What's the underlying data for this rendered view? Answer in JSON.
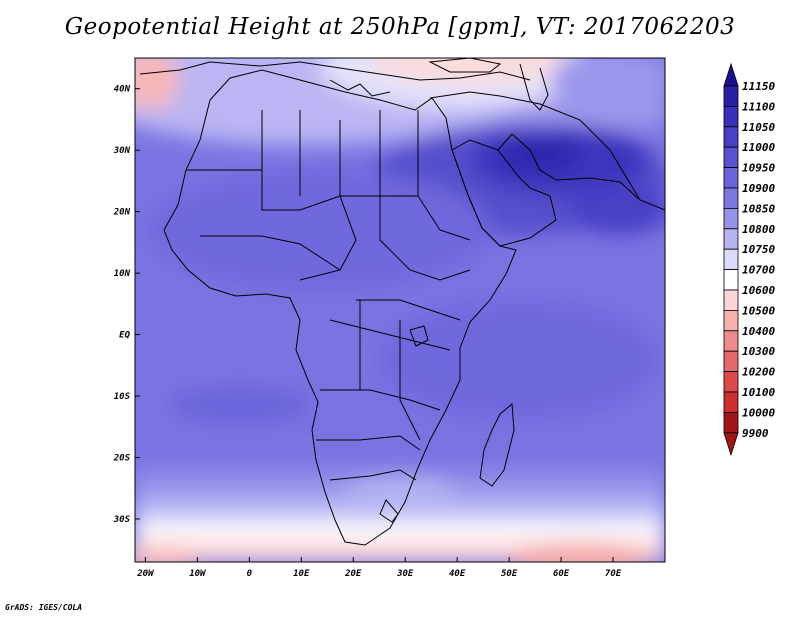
{
  "title": "Geopotential Height at 250hPa [gpm], VT: 2017062203",
  "credit": "GrADS: IGES/COLA",
  "lat_ticks": [
    "40N",
    "30N",
    "20N",
    "10N",
    "EQ",
    "10S",
    "20S",
    "30S"
  ],
  "lat_values": [
    40,
    30,
    20,
    10,
    0,
    -10,
    -20,
    -30
  ],
  "lon_ticks": [
    "20W",
    "10W",
    "0",
    "10E",
    "20E",
    "30E",
    "40E",
    "50E",
    "60E",
    "70E"
  ],
  "lon_values": [
    -20,
    -10,
    0,
    10,
    20,
    30,
    40,
    50,
    60,
    70
  ],
  "map_extent": {
    "lon": [
      -22,
      80
    ],
    "lat": [
      -37,
      45
    ]
  },
  "colorbar": {
    "levels": [
      "11150",
      "11100",
      "11050",
      "11000",
      "10950",
      "10900",
      "10850",
      "10800",
      "10750",
      "10700",
      "10600",
      "10500",
      "10400",
      "10300",
      "10200",
      "10100",
      "10000",
      "9900"
    ],
    "colors": [
      "#1a0f8f",
      "#2a1ea8",
      "#3a2fbb",
      "#4a3fc8",
      "#5a50d2",
      "#6b63dc",
      "#7d77e3",
      "#9592ea",
      "#b5b3f2",
      "#dcdcfa",
      "#ffffff",
      "#fcd6d6",
      "#f7b0b0",
      "#ef8a8a",
      "#e66868",
      "#dd4848",
      "#cf2e2e",
      "#a11515"
    ]
  }
}
